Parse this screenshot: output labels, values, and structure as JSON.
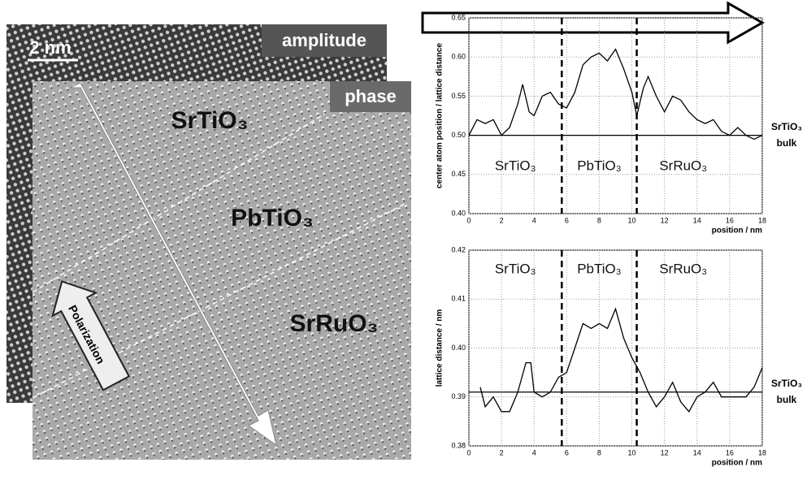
{
  "image": {
    "scale_bar": "2 nm",
    "amplitude_label": "amplitude",
    "phase_label": "phase",
    "layers": [
      "SrTiO₃",
      "PbTiO₃",
      "SrRuO₃"
    ],
    "arrow_label": "Polarization"
  },
  "chart_data": [
    {
      "type": "line",
      "ylabel": "center atom position / lattice distance",
      "xlabel": "position / nm",
      "xlim": [
        0,
        18
      ],
      "xticks": [
        0,
        2,
        4,
        6,
        8,
        10,
        12,
        14,
        16,
        18
      ],
      "ylim": [
        0.4,
        0.65
      ],
      "yticks": [
        {
          "value": 0.4,
          "label": "0.40"
        },
        0.45,
        {
          "value": 0.5,
          "label": "0.50"
        },
        0.55,
        {
          "value": 0.6,
          "label": "0.60"
        },
        0.65
      ],
      "grid": true,
      "color": "#000000",
      "x": [
        0,
        0.5,
        1,
        1.5,
        2,
        2.5,
        3,
        3.3,
        3.7,
        4,
        4.5,
        5,
        5.5,
        6,
        6.5,
        7,
        7.5,
        8,
        8.5,
        9,
        9.5,
        10,
        10.3,
        10.7,
        11,
        11.5,
        12,
        12.5,
        13,
        13.5,
        14,
        14.5,
        15,
        15.5,
        16,
        16.5,
        17,
        17.5,
        18
      ],
      "values": [
        0.5,
        0.52,
        0.515,
        0.52,
        0.5,
        0.51,
        0.54,
        0.565,
        0.53,
        0.525,
        0.55,
        0.555,
        0.54,
        0.535,
        0.555,
        0.59,
        0.6,
        0.605,
        0.595,
        0.61,
        0.585,
        0.555,
        0.525,
        0.56,
        0.575,
        0.55,
        0.53,
        0.55,
        0.545,
        0.53,
        0.52,
        0.515,
        0.52,
        0.505,
        0.5,
        0.51,
        0.5,
        0.495,
        0.5
      ],
      "reference": {
        "value": 0.5,
        "label": [
          "SrTiO₃",
          "bulk"
        ]
      },
      "boundaries": [
        5.7,
        10.3
      ],
      "regions": [
        "SrTiO₃",
        "PbTiO₃",
        "SrRuO₃"
      ]
    },
    {
      "type": "line",
      "ylabel": "lattice distance / nm",
      "xlabel": "position / nm",
      "xlim": [
        0,
        18
      ],
      "xticks": [
        0,
        2,
        4,
        6,
        8,
        10,
        12,
        14,
        16,
        18
      ],
      "ylim": [
        0.38,
        0.42
      ],
      "yticks": [
        0.38,
        0.39,
        {
          "value": 0.4,
          "label": "0.40"
        },
        0.41,
        0.42
      ],
      "grid": true,
      "color": "#000000",
      "x": [
        0.7,
        1,
        1.5,
        2,
        2.5,
        3,
        3.5,
        3.8,
        4,
        4.5,
        5,
        5.5,
        6,
        6.5,
        7,
        7.5,
        8,
        8.5,
        9,
        9.5,
        10,
        10.5,
        11,
        11.5,
        12,
        12.5,
        13,
        13.5,
        14,
        14.5,
        15,
        15.5,
        16,
        16.5,
        17,
        17.5,
        18
      ],
      "values": [
        0.392,
        0.388,
        0.39,
        0.387,
        0.387,
        0.391,
        0.397,
        0.397,
        0.391,
        0.39,
        0.391,
        0.394,
        0.395,
        0.4,
        0.405,
        0.404,
        0.405,
        0.404,
        0.408,
        0.402,
        0.398,
        0.395,
        0.391,
        0.388,
        0.39,
        0.393,
        0.389,
        0.387,
        0.39,
        0.391,
        0.393,
        0.39,
        0.39,
        0.39,
        0.39,
        0.392,
        0.396
      ],
      "reference": {
        "value": 0.391,
        "label": [
          "SrTiO₃",
          "bulk"
        ]
      },
      "boundaries": [
        5.7,
        10.3
      ],
      "regions": [
        "SrTiO₃",
        "PbTiO₃",
        "SrRuO₃"
      ]
    }
  ]
}
